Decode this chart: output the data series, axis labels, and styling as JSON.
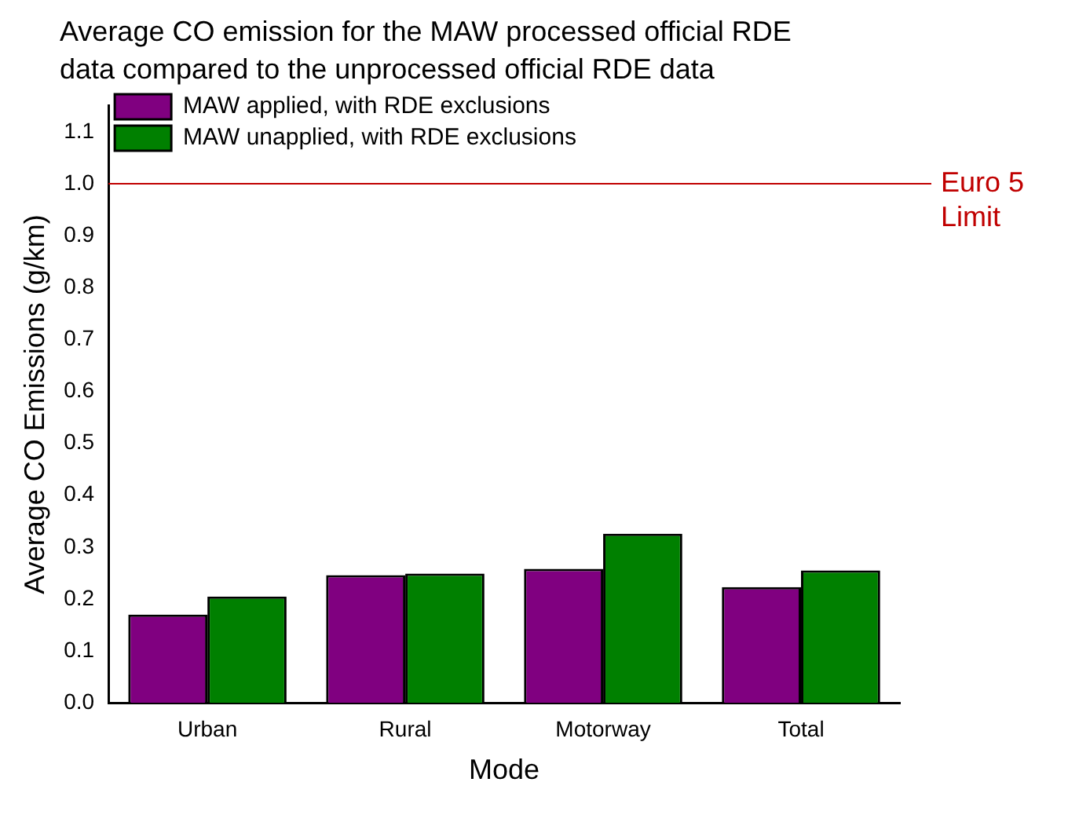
{
  "chart_data": {
    "type": "bar",
    "title": "Average CO emission for the MAW processed official RDE data compared to the unprocessed official RDE data",
    "xlabel": "Mode",
    "ylabel": "Average CO Emissions (g/km)",
    "categories": [
      "Urban",
      "Rural",
      "Motorway",
      "Total"
    ],
    "series": [
      {
        "name": "MAW applied, with RDE exclusions",
        "color": "#800080",
        "values": [
          0.17,
          0.246,
          0.258,
          0.223
        ]
      },
      {
        "name": "MAW unapplied, with RDE exclusions",
        "color": "#008000",
        "values": [
          0.205,
          0.249,
          0.326,
          0.255
        ]
      }
    ],
    "ylim": [
      0,
      1.15
    ],
    "yticks": [
      {
        "value": 0,
        "label": "0.0"
      },
      0.1,
      0.2,
      0.3,
      0.4,
      0.5,
      0.6,
      0.7,
      0.8,
      0.9,
      {
        "value": 1,
        "label": "1.0"
      },
      1.1
    ],
    "ref_lines": [
      {
        "axis": "y",
        "value": 1.0,
        "label": "Euro 5 Limit",
        "color": "#c00000"
      }
    ],
    "grid": false,
    "legend": "top left"
  }
}
